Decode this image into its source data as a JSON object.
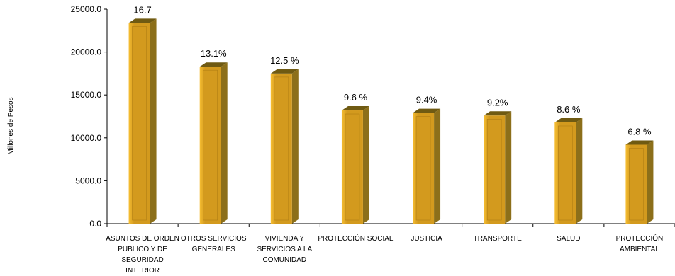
{
  "chart_data": {
    "type": "bar",
    "ylabel": "Millones de Pesos",
    "ylim": [
      0,
      25000
    ],
    "yticks": [
      "0.0",
      "5000.0",
      "10000.0",
      "15000.0",
      "20000.0",
      "25000.0"
    ],
    "grid": false,
    "legend": "none",
    "categories": [
      "ASUNTOS DE ORDEN PUBLICO Y DE SEGURIDAD INTERIOR",
      "OTROS SERVICIOS GENERALES",
      "VIVIENDA Y SERVICIOS A LA COMUNIDAD",
      "PROTECCIÓN SOCIAL",
      "JUSTICIA",
      "TRANSPORTE",
      "SALUD",
      "PROTECCIÓN AMBIENTAL"
    ],
    "values": [
      23400,
      18300,
      17500,
      13200,
      12900,
      12600,
      11800,
      9200
    ],
    "data_labels": [
      "16.7",
      "13.1%",
      "12.5 %",
      "9.6 %",
      "9.4%",
      "9.2%",
      "8.6 %",
      "6.8 %"
    ],
    "colors": {
      "front": "#d39a1e",
      "front_light": "#f6be33",
      "side": "#8c6f1a",
      "top": "#6f5a12",
      "axis": "#000000"
    }
  }
}
